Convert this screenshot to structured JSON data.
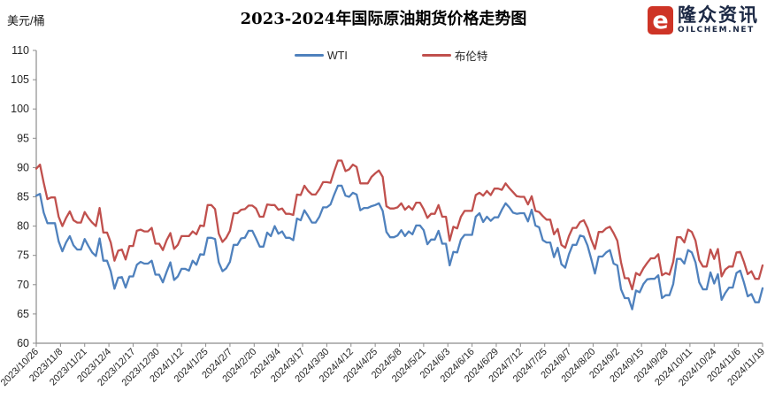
{
  "page": {
    "unit_label": "美元/桶",
    "title": "2023-2024年国际原油期货价格走势图"
  },
  "logo": {
    "brand": "隆众资讯",
    "domain": "OILCHEM.NET",
    "mark_letter": "e",
    "red": "#CE3426",
    "navy": "#1B2844"
  },
  "chart_data": {
    "type": "line",
    "title": "2023-2024年国际原油期货价格走势图",
    "ylabel": "美元/桶",
    "xlabel": "",
    "ylim": [
      60,
      110
    ],
    "y_ticks": [
      60,
      65,
      70,
      75,
      80,
      85,
      90,
      95,
      100,
      105,
      110
    ],
    "grid": false,
    "legend_position": "top-center",
    "axis_color": "#8C8C8C",
    "x_labels": [
      "2023/10/26",
      "2023/11/8",
      "2023/11/21",
      "2023/12/4",
      "2023/12/17",
      "2023/12/30",
      "2024/1/12",
      "2024/1/25",
      "2024/2/7",
      "2024/2/20",
      "2024/3/4",
      "2024/3/17",
      "2024/3/30",
      "2024/4/12",
      "2024/4/25",
      "2024/5/8",
      "2024/5/21",
      "2024/6/3",
      "2024/6/16",
      "2024/6/29",
      "2024/7/12",
      "2024/7/25",
      "2024/8/7",
      "2024/8/20",
      "2024/9/2",
      "2024/9/15",
      "2024/9/28",
      "2024/10/11",
      "2024/10/24",
      "2024/11/6",
      "2024/11/19"
    ],
    "series": [
      {
        "name": "WTI",
        "color": "#4F81BD",
        "values": [
          85.2,
          85.5,
          82.3,
          80.5,
          80.5,
          80.5,
          77.4,
          75.7,
          77.2,
          78.3,
          76.7,
          76.0,
          76.0,
          77.8,
          76.6,
          75.5,
          74.9,
          77.9,
          74.1,
          74.1,
          72.3,
          69.3,
          71.2,
          71.3,
          69.5,
          71.4,
          71.4,
          73.4,
          73.9,
          73.6,
          73.6,
          74.1,
          71.7,
          71.7,
          70.4,
          72.2,
          73.8,
          70.8,
          71.4,
          72.7,
          72.7,
          72.4,
          74.1,
          73.4,
          75.2,
          75.1,
          78.0,
          78.0,
          77.8,
          73.8,
          72.3,
          72.8,
          73.9,
          76.8,
          76.8,
          77.9,
          78.0,
          79.2,
          79.2,
          77.9,
          76.5,
          76.5,
          78.9,
          78.3,
          80.0,
          78.7,
          79.1,
          78.0,
          78.0,
          77.6,
          81.3,
          81.0,
          82.7,
          81.7,
          80.6,
          80.6,
          81.6,
          83.2,
          83.2,
          83.7,
          85.4,
          86.9,
          86.9,
          85.2,
          85.0,
          85.7,
          85.4,
          82.7,
          83.1,
          83.1,
          83.4,
          83.6,
          83.9,
          82.6,
          79.0,
          78.1,
          78.1,
          78.4,
          79.3,
          78.3,
          79.1,
          78.6,
          80.1,
          80.1,
          79.3,
          76.9,
          77.7,
          77.7,
          79.2,
          77.0,
          77.0,
          73.3,
          75.6,
          75.5,
          77.7,
          78.5,
          78.5,
          78.5,
          81.6,
          82.2,
          80.7,
          81.6,
          80.9,
          81.5,
          81.5,
          82.8,
          83.9,
          83.2,
          82.3,
          82.1,
          82.2,
          82.2,
          80.8,
          82.8,
          80.1,
          79.8,
          77.6,
          77.2,
          77.2,
          74.7,
          76.3,
          73.5,
          72.9,
          75.2,
          76.8,
          76.8,
          78.4,
          78.2,
          76.7,
          74.4,
          71.9,
          74.8,
          74.8,
          75.5,
          75.9,
          73.6,
          73.3,
          69.2,
          67.7,
          67.7,
          65.8,
          69.0,
          68.7,
          70.1,
          70.9,
          71.0,
          71.0,
          71.6,
          67.7,
          68.2,
          68.2,
          70.1,
          74.4,
          74.4,
          73.6,
          75.9,
          75.5,
          73.8,
          70.4,
          69.2,
          69.2,
          72.1,
          70.2,
          71.8,
          67.4,
          68.6,
          69.5,
          69.5,
          72.0,
          72.4,
          70.4,
          68.0,
          68.4,
          67.0,
          67.0,
          69.4
        ]
      },
      {
        "name": "布伦特",
        "color": "#C0504D",
        "values": [
          89.8,
          90.5,
          87.4,
          84.6,
          84.9,
          84.9,
          81.6,
          80.0,
          81.4,
          82.5,
          81.0,
          80.6,
          80.6,
          82.4,
          81.4,
          80.6,
          80.0,
          83.1,
          78.9,
          78.9,
          77.2,
          74.1,
          75.8,
          76.0,
          74.3,
          76.6,
          76.6,
          79.2,
          79.4,
          79.1,
          79.1,
          79.7,
          77.0,
          77.0,
          75.9,
          77.6,
          78.8,
          76.1,
          76.8,
          78.3,
          78.3,
          78.3,
          79.1,
          78.6,
          80.1,
          80.0,
          83.6,
          83.6,
          82.9,
          78.7,
          77.3,
          78.0,
          79.2,
          82.2,
          82.2,
          82.8,
          82.9,
          83.5,
          83.5,
          83.0,
          81.6,
          81.6,
          83.7,
          83.6,
          83.6,
          82.8,
          83.0,
          82.1,
          82.1,
          81.9,
          85.4,
          85.3,
          86.9,
          86.0,
          85.4,
          85.4,
          86.3,
          87.5,
          87.5,
          87.4,
          89.4,
          91.2,
          91.2,
          89.4,
          89.7,
          90.5,
          90.1,
          87.3,
          87.3,
          87.3,
          88.4,
          89.0,
          89.5,
          88.4,
          83.4,
          83.0,
          83.0,
          83.2,
          83.9,
          82.8,
          83.4,
          82.8,
          84.0,
          84.0,
          82.9,
          81.4,
          82.1,
          82.1,
          83.6,
          81.6,
          81.6,
          77.5,
          79.9,
          79.6,
          81.6,
          82.6,
          82.6,
          82.6,
          85.3,
          85.7,
          85.2,
          86.0,
          85.3,
          86.4,
          86.4,
          86.2,
          87.3,
          86.5,
          85.8,
          85.1,
          85.0,
          85.0,
          83.7,
          85.1,
          82.6,
          82.4,
          81.7,
          81.1,
          81.1,
          78.6,
          79.5,
          76.8,
          76.3,
          78.3,
          79.7,
          79.7,
          80.7,
          81.0,
          79.7,
          77.7,
          76.1,
          79.0,
          79.0,
          79.6,
          79.9,
          78.8,
          77.5,
          73.8,
          71.1,
          71.1,
          69.2,
          72.0,
          71.6,
          72.8,
          73.7,
          74.5,
          74.5,
          75.2,
          71.6,
          72.0,
          71.7,
          73.9,
          78.1,
          78.1,
          77.2,
          79.4,
          79.0,
          77.5,
          74.2,
          73.1,
          73.1,
          76.0,
          74.4,
          76.1,
          71.4,
          72.6,
          73.1,
          73.1,
          75.5,
          75.6,
          73.9,
          71.8,
          72.3,
          71.0,
          71.0,
          73.3
        ]
      }
    ]
  }
}
